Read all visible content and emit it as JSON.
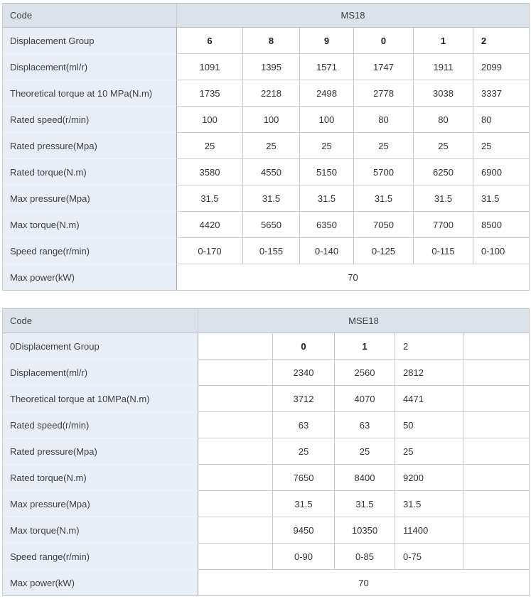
{
  "tables": [
    {
      "code_label": "Code",
      "code_value": "MS18",
      "rows": [
        {
          "label": "Displacement Group",
          "group": true,
          "values": [
            "6",
            "8",
            "9",
            "0",
            "1",
            "2"
          ]
        },
        {
          "label": "Displacement(ml/r)",
          "values": [
            "1091",
            "1395",
            "1571",
            "1747",
            "1911",
            "2099"
          ]
        },
        {
          "label": "Theoretical torque at 10 MPa(N.m)",
          "values": [
            "1735",
            "2218",
            "2498",
            "2778",
            "3038",
            "3337"
          ]
        },
        {
          "label": "Rated speed(r/min)",
          "values": [
            "100",
            "100",
            "100",
            "80",
            "80",
            "80"
          ]
        },
        {
          "label": "Rated pressure(Mpa)",
          "values": [
            "25",
            "25",
            "25",
            "25",
            "25",
            "25"
          ]
        },
        {
          "label": "Rated torque(N.m)",
          "values": [
            "3580",
            "4550",
            "5150",
            "5700",
            "6250",
            "6900"
          ]
        },
        {
          "label": "Max pressure(Mpa)",
          "values": [
            "31.5",
            "31.5",
            "31.5",
            "31.5",
            "31.5",
            "31.5"
          ]
        },
        {
          "label": "Max torque(N.m)",
          "values": [
            "4420",
            "5650",
            "6350",
            "7050",
            "7700",
            "8500"
          ]
        },
        {
          "label": "Speed range(r/min)",
          "values": [
            "0-170",
            "0-155",
            "0-140",
            "0-125",
            "0-115",
            "0-100"
          ]
        },
        {
          "label": "Max power(kW)",
          "span_value": "70"
        }
      ]
    },
    {
      "code_label": "Code",
      "code_value": "MSE18",
      "rows": [
        {
          "label": "0Displacement Group",
          "group": true,
          "values": [
            "",
            "0",
            "1",
            "2",
            ""
          ]
        },
        {
          "label": "Displacement(ml/r)",
          "values": [
            "",
            "2340",
            "2560",
            "2812",
            ""
          ]
        },
        {
          "label": "Theoretical torque at 10MPa(N.m)",
          "values": [
            "",
            "3712",
            "4070",
            "4471",
            ""
          ]
        },
        {
          "label": "Rated speed(r/min)",
          "values": [
            "",
            "63",
            "63",
            "50",
            ""
          ]
        },
        {
          "label": "Rated pressure(Mpa)",
          "values": [
            "",
            "25",
            "25",
            "25",
            ""
          ]
        },
        {
          "label": "Rated torque(N.m)",
          "values": [
            "",
            "7650",
            "8400",
            "9200",
            ""
          ]
        },
        {
          "label": "Max pressure(Mpa)",
          "values": [
            "",
            "31.5",
            "31.5",
            "31.5",
            ""
          ]
        },
        {
          "label": "Max torque(N.m)",
          "values": [
            "",
            "9450",
            "10350",
            "11400",
            ""
          ]
        },
        {
          "label": "Speed range(r/min)",
          "values": [
            "",
            "0-90",
            "0-85",
            "0-75",
            ""
          ]
        },
        {
          "label": "Max power(kW)",
          "span_value": "70"
        }
      ]
    }
  ],
  "colors": {
    "header_bg": "#dce2ea",
    "label_bg": "#e9eef6",
    "grid_border": "#c3c7cc",
    "label_divider": "#9ea6b1",
    "outer_border": "#b6bcc4"
  }
}
